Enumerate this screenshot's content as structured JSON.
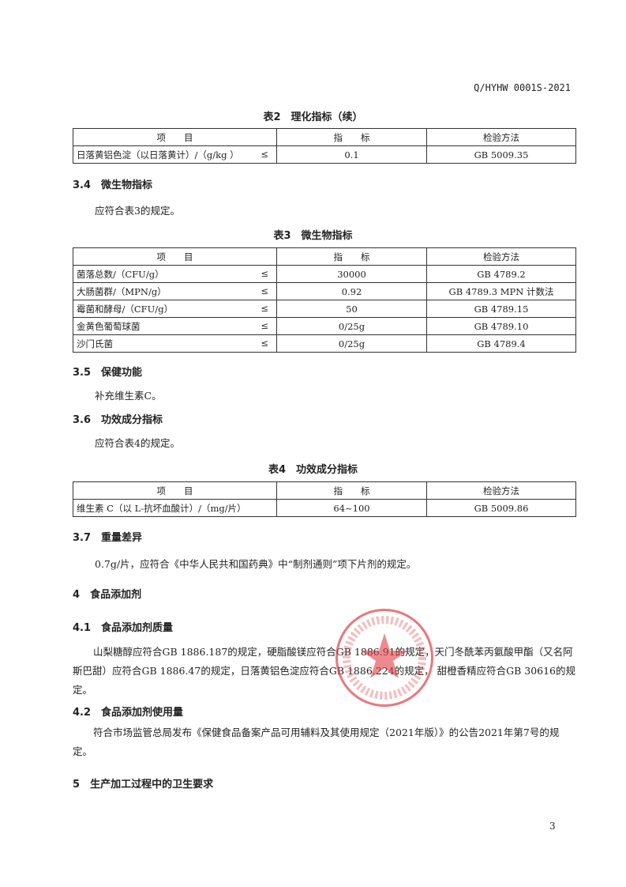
{
  "header": {
    "doc_code": "Q/HYHW 0001S-2021"
  },
  "table2": {
    "title": "表2　理化指标（续）",
    "headers": [
      "项　　目",
      "指　　标",
      "检验方法"
    ],
    "rows": [
      {
        "item": "日落黄铝色淀（以日落黄计）/（g/kg ）",
        "op": "≤",
        "value": "0.1",
        "method": "GB 5009.35"
      }
    ]
  },
  "s3_4": {
    "num": "3.4",
    "title": "微生物指标",
    "text": "应符合表3的规定。"
  },
  "table3": {
    "title": "表3　微生物指标",
    "headers": [
      "项　　目",
      "指　　标",
      "检验方法"
    ],
    "rows": [
      {
        "item": "菌落总数/（CFU/g）",
        "op": "≤",
        "value": "30000",
        "method": "GB 4789.2"
      },
      {
        "item": "大肠菌群/（MPN/g）",
        "op": "≤",
        "value": "0.92",
        "method": "GB 4789.3 MPN 计数法"
      },
      {
        "item": "霉菌和酵母/（CFU/g）",
        "op": "≤",
        "value": "50",
        "method": "GB 4789.15"
      },
      {
        "item": "金黄色葡萄球菌",
        "op": "≤",
        "value": "0/25g",
        "method": "GB 4789.10"
      },
      {
        "item": "沙门氏菌",
        "op": "≤",
        "value": "0/25g",
        "method": "GB 4789.4"
      }
    ]
  },
  "s3_5": {
    "num": "3.5",
    "title": "保健功能",
    "text": "补充维生素C。"
  },
  "s3_6": {
    "num": "3.6",
    "title": "功效成分指标",
    "text": "应符合表4的规定。"
  },
  "table4": {
    "title": "表4　功效成分指标",
    "headers": [
      "项　　目",
      "指　　标",
      "检验方法"
    ],
    "rows": [
      {
        "item": "维生素 C（以 L-抗坏血酸计）/（mg/片）",
        "value": "64~100",
        "method": "GB 5009.86"
      }
    ]
  },
  "s3_7": {
    "num": "3.7",
    "title": "重量差异",
    "text": "0.7g/片，应符合《中华人民共和国药典》中“制剂通则”项下片剂的规定。"
  },
  "s4": {
    "num": "4",
    "title": "食品添加剂"
  },
  "s4_1": {
    "num": "4.1",
    "title": "食品添加剂质量",
    "text": "山梨糖醇应符合GB 1886.187的规定，硬脂酸镁应符合GB 1886.91的规定，天门冬酰苯丙氨酸甲酯（又名阿斯巴甜）应符合GB 1886.47的规定，日落黄铝色淀应符合GB 1886.224的规定， 甜橙香精应符合GB 30616的规定。"
  },
  "s4_2": {
    "num": "4.2",
    "title": "食品添加剂使用量",
    "text": "符合市场监管总局发布《保健食品备案产品可用辅料及其使用规定（2021年版）》的公告2021年第7号的规定。"
  },
  "s5": {
    "num": "5",
    "title": "生产加工过程中的卫生要求"
  },
  "stamp": {
    "text": "有限公司石家庄高新区分公司",
    "color": "#e03c46"
  },
  "footer": {
    "page_number": "3"
  }
}
